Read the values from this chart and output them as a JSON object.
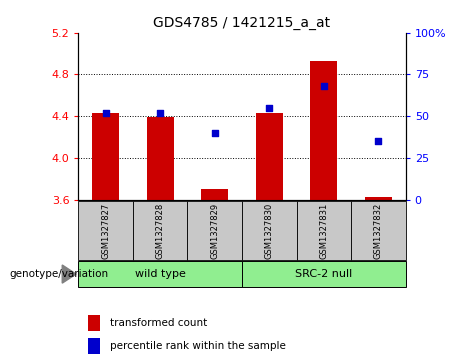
{
  "title": "GDS4785 / 1421215_a_at",
  "samples": [
    "GSM1327827",
    "GSM1327828",
    "GSM1327829",
    "GSM1327830",
    "GSM1327831",
    "GSM1327832"
  ],
  "bar_color": "#CC0000",
  "dot_color": "#0000CC",
  "transformed_count": [
    4.43,
    4.39,
    3.7,
    4.43,
    4.93,
    3.63
  ],
  "baseline": 3.6,
  "percentile_rank": [
    52,
    52,
    40,
    55,
    68,
    35
  ],
  "ylim_left": [
    3.6,
    5.2
  ],
  "ylim_right": [
    0,
    100
  ],
  "yticks_left": [
    3.6,
    4.0,
    4.4,
    4.8,
    5.2
  ],
  "yticks_right": [
    0,
    25,
    50,
    75,
    100
  ],
  "ytick_labels_right": [
    "0",
    "25",
    "50",
    "75",
    "100%"
  ],
  "bg_color": "#FFFFFF",
  "legend_label_red": "transformed count",
  "legend_label_blue": "percentile rank within the sample",
  "genotype_label": "genotype/variation",
  "sample_bg_color": "#C8C8C8",
  "group_green": "#90EE90",
  "title_fontsize": 10,
  "tick_fontsize": 8,
  "bar_width": 0.5,
  "grid_yticks": [
    4.0,
    4.4,
    4.8
  ],
  "group_info": [
    {
      "label": "wild type",
      "start": 0,
      "end": 2
    },
    {
      "label": "SRC-2 null",
      "start": 3,
      "end": 5
    }
  ]
}
